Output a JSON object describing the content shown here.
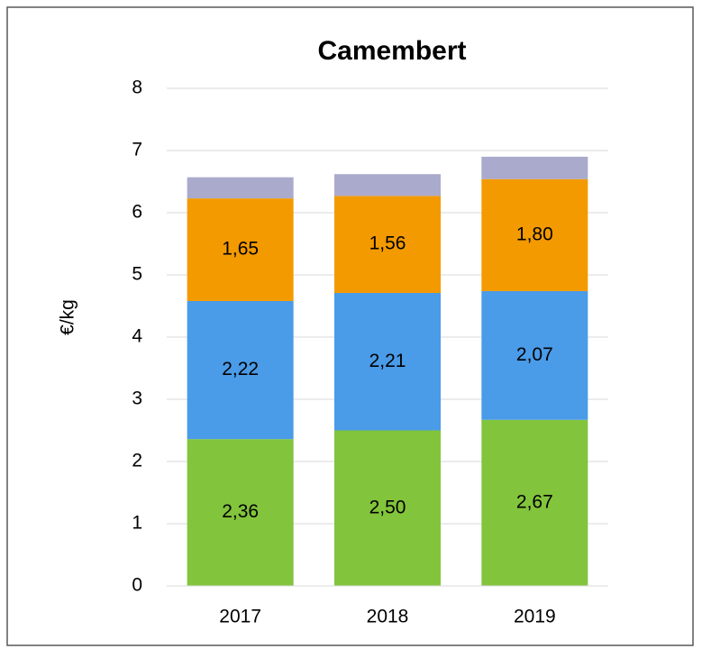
{
  "chart_data": {
    "type": "bar",
    "stacked": true,
    "title": "Camembert",
    "y_label": "€/kg",
    "categories": [
      "2017",
      "2018",
      "2019"
    ],
    "series": [
      {
        "color": "#82c43c",
        "values": [
          2.36,
          2.5,
          2.67
        ],
        "value_labels": [
          "2,36",
          "2,50",
          "2,67"
        ]
      },
      {
        "color": "#4a9be8",
        "values": [
          2.22,
          2.21,
          2.07
        ],
        "value_labels": [
          "2,22",
          "2,21",
          "2,07"
        ]
      },
      {
        "color": "#f39a00",
        "values": [
          1.65,
          1.56,
          1.8
        ],
        "value_labels": [
          "1,65",
          "1,56",
          "1,80"
        ]
      },
      {
        "color": "#aaaacc",
        "values": [
          0.34,
          0.35,
          0.36
        ]
      }
    ],
    "ylim": [
      0,
      8
    ],
    "yticks": [
      0,
      1,
      2,
      3,
      4,
      5,
      6,
      7,
      8
    ],
    "grid": true
  }
}
